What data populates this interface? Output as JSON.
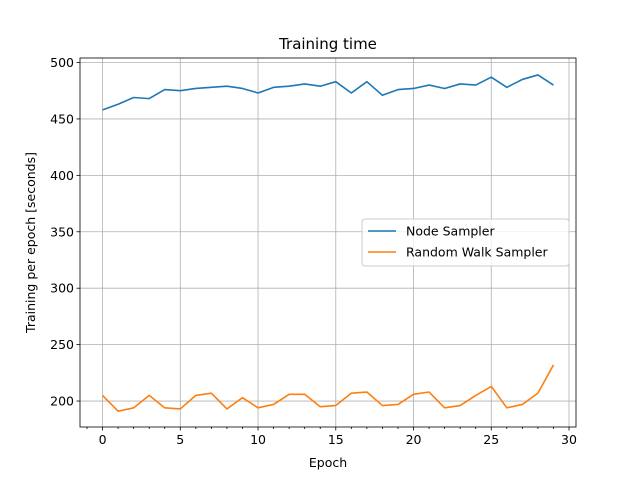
{
  "chart_data": {
    "type": "line",
    "title": "Training time",
    "xlabel": "Epoch",
    "ylabel": "Training per epoch [seconds]",
    "xlim": [
      -1.45,
      30.45
    ],
    "ylim": [
      177,
      504
    ],
    "xticks": [
      0,
      5,
      10,
      15,
      20,
      25,
      30
    ],
    "yticks": [
      200,
      250,
      300,
      350,
      400,
      450,
      500
    ],
    "xtick_labels": [
      "0",
      "5",
      "10",
      "15",
      "20",
      "25",
      "30"
    ],
    "ytick_labels": [
      "200",
      "250",
      "300",
      "350",
      "400",
      "450",
      "500"
    ],
    "x_minor_step": 1,
    "grid": true,
    "legend_position": "center-right",
    "x": [
      0,
      1,
      2,
      3,
      4,
      5,
      6,
      7,
      8,
      9,
      10,
      11,
      12,
      13,
      14,
      15,
      16,
      17,
      18,
      19,
      20,
      21,
      22,
      23,
      24,
      25,
      26,
      27,
      28,
      29
    ],
    "series": [
      {
        "name": "Node Sampler",
        "color": "#1f77b4",
        "values": [
          458,
          463,
          469,
          468,
          476,
          475,
          477,
          478,
          479,
          477,
          473,
          478,
          479,
          481,
          479,
          483,
          473,
          483,
          471,
          476,
          477,
          480,
          477,
          481,
          480,
          487,
          478,
          485,
          489,
          480
        ]
      },
      {
        "name": "Random Walk Sampler",
        "color": "#ff7f0e",
        "values": [
          205,
          191,
          194,
          205,
          194,
          193,
          205,
          207,
          193,
          203,
          194,
          197,
          206,
          206,
          195,
          196,
          207,
          208,
          196,
          197,
          206,
          208,
          194,
          196,
          205,
          213,
          194,
          197,
          207,
          232
        ]
      }
    ]
  }
}
